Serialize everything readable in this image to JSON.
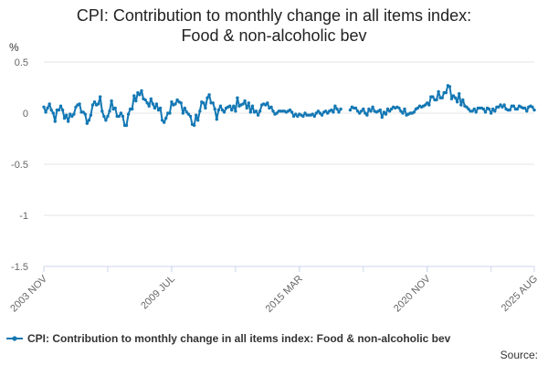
{
  "chart_data": {
    "type": "line",
    "title_line1": "CPI: Contribution to monthly change in all items index:",
    "title_line2": "Food & non-alcoholic bev",
    "ylabel": "%",
    "ylim": [
      -1.5,
      0.5
    ],
    "yticks": [
      "0.5",
      "0",
      "-0.5",
      "-1",
      "-1.5"
    ],
    "ytick_values": [
      0.5,
      0,
      -0.5,
      -1,
      -1.5
    ],
    "xtick_labels": [
      "2003 NOV",
      "2009 JUL",
      "2015 MAR",
      "2020 NOV",
      "2025 AUG"
    ],
    "xtick_index": [
      0,
      68,
      136,
      204,
      261
    ],
    "n_points": 262,
    "gaps": [
      [
        159,
        162
      ]
    ],
    "series": [
      {
        "name": "CPI: Contribution to monthly change in all items index: Food & non-alcoholic bev",
        "color": "#1478b4",
        "anchors": [
          [
            0,
            0.04
          ],
          [
            3,
            0.03
          ],
          [
            6,
            -0.04
          ],
          [
            9,
            0.03
          ],
          [
            12,
            -0.06
          ],
          [
            16,
            0.02
          ],
          [
            20,
            0.06
          ],
          [
            23,
            -0.08
          ],
          [
            27,
            0.07
          ],
          [
            30,
            0.12
          ],
          [
            33,
            -0.05
          ],
          [
            36,
            0.06
          ],
          [
            40,
            -0.02
          ],
          [
            44,
            -0.12
          ],
          [
            48,
            0.16
          ],
          [
            52,
            0.2
          ],
          [
            56,
            0.08
          ],
          [
            60,
            0.12
          ],
          [
            64,
            -0.06
          ],
          [
            68,
            0.07
          ],
          [
            72,
            0.1
          ],
          [
            76,
            0.02
          ],
          [
            80,
            -0.12
          ],
          [
            84,
            0.06
          ],
          [
            88,
            0.16
          ],
          [
            92,
            -0.03
          ],
          [
            96,
            0.05
          ],
          [
            100,
            0.02
          ],
          [
            104,
            0.12
          ],
          [
            108,
            0.07
          ],
          [
            112,
            0.02
          ],
          [
            116,
            0.05
          ],
          [
            120,
            0.04
          ],
          [
            124,
            0.02
          ],
          [
            128,
            0.01
          ],
          [
            132,
            0.0
          ],
          [
            136,
            -0.02
          ],
          [
            140,
            -0.01
          ],
          [
            144,
            0.0
          ],
          [
            148,
            -0.02
          ],
          [
            152,
            0.02
          ],
          [
            156,
            0.05
          ],
          [
            158,
            0.03
          ],
          [
            163,
            0.05
          ],
          [
            168,
            0.02
          ],
          [
            172,
            0.01
          ],
          [
            176,
            0.04
          ],
          [
            180,
            -0.02
          ],
          [
            184,
            0.03
          ],
          [
            188,
            0.05
          ],
          [
            192,
            0.02
          ],
          [
            196,
            0.0
          ],
          [
            200,
            0.06
          ],
          [
            204,
            0.09
          ],
          [
            208,
            0.12
          ],
          [
            212,
            0.2
          ],
          [
            215,
            0.22
          ],
          [
            218,
            0.18
          ],
          [
            221,
            0.14
          ],
          [
            224,
            0.04
          ],
          [
            228,
            0.01
          ],
          [
            232,
            0.04
          ],
          [
            236,
            0.03
          ],
          [
            240,
            0.03
          ],
          [
            244,
            0.06
          ],
          [
            248,
            0.05
          ],
          [
            252,
            0.05
          ],
          [
            256,
            0.04
          ],
          [
            261,
            0.05
          ]
        ],
        "jitter_amp": 0.06
      }
    ],
    "legend_label": "CPI: Contribution to monthly change in all items index: Food & non-alcoholic bev",
    "source_label": "Source:"
  }
}
